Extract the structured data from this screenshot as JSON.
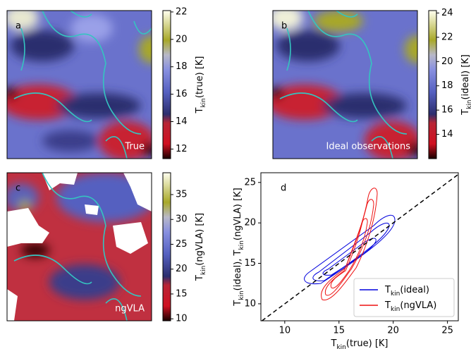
{
  "chart_data": [
    {
      "type": "image",
      "label": "a",
      "annotation": "True",
      "colorbar_label": [
        "T",
        "kin",
        "(true) [K]"
      ],
      "clim": [
        11.3,
        22.1
      ],
      "cticks": [
        12,
        14,
        16,
        18,
        20,
        22
      ]
    },
    {
      "type": "image",
      "label": "b",
      "annotation": "Ideal observations",
      "colorbar_label": [
        "T",
        "kin",
        "(ideal) [K]"
      ],
      "clim": [
        12.0,
        24.2
      ],
      "cticks": [
        14,
        16,
        18,
        20,
        22,
        24
      ]
    },
    {
      "type": "image",
      "label": "c",
      "annotation": "ngVLA",
      "colorbar_label": [
        "T",
        "kin",
        "(ngVLA) [K]"
      ],
      "clim": [
        9.6,
        39.4
      ],
      "cticks": [
        10,
        15,
        20,
        25,
        30,
        35
      ]
    },
    {
      "type": "contour",
      "label": "d",
      "xlabel": [
        "T",
        "kin",
        "(true) [K]"
      ],
      "ylabel": [
        "T",
        "kin",
        "(ideal), T",
        "kin",
        "(ngVLA) [K]"
      ],
      "xlim": [
        7.8,
        26.0
      ],
      "ylim": [
        7.9,
        26.2
      ],
      "xticks": [
        10,
        15,
        20,
        25
      ],
      "yticks": [
        10,
        15,
        20,
        25
      ],
      "series": [
        {
          "name": [
            "T",
            "kin",
            "(ideal)"
          ],
          "color": "#0000dd"
        },
        {
          "name": [
            "T",
            "kin",
            "(ngVLA)"
          ],
          "color": "#ee1111"
        }
      ],
      "legend": "lower right"
    }
  ]
}
